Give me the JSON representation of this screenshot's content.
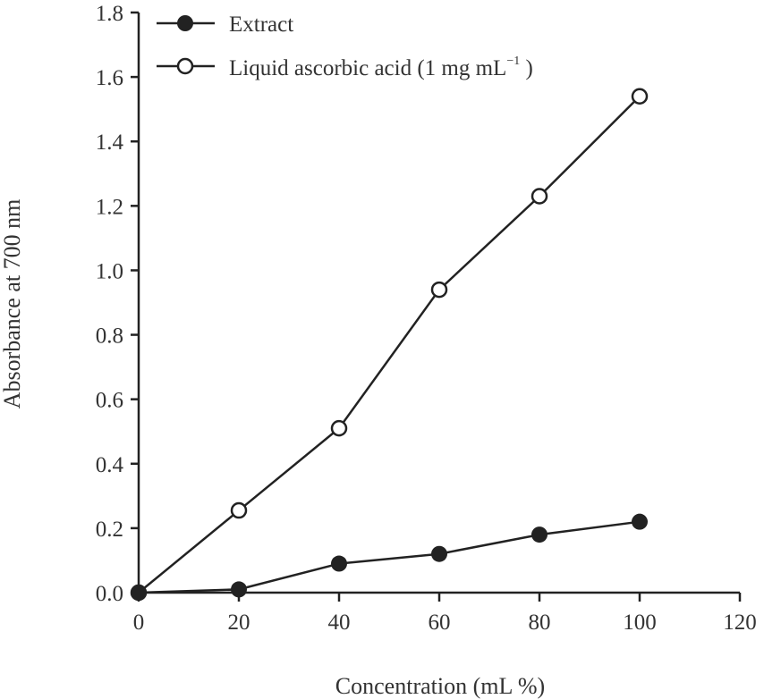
{
  "chart_data": {
    "type": "line",
    "title": "",
    "xlabel": "Concentration (mL %)",
    "ylabel": "Absorbance at 700 nm",
    "xlim": [
      0,
      120
    ],
    "ylim": [
      0,
      1.8
    ],
    "x_ticks": [
      "0",
      "20",
      "40",
      "60",
      "80",
      "100",
      "120"
    ],
    "y_ticks": [
      "0.0",
      "0.2",
      "0.4",
      "0.6",
      "0.8",
      "1.0",
      "1.2",
      "1.4",
      "1.6",
      "1.8"
    ],
    "grid": false,
    "legend_position": "top-left",
    "x": [
      0,
      20,
      40,
      60,
      80,
      100
    ],
    "series": [
      {
        "name": "Extract",
        "marker": "filled-circle",
        "values": [
          0.0,
          0.01,
          0.09,
          0.12,
          0.18,
          0.22
        ]
      },
      {
        "name": "Liquid ascorbic acid (1 mg mL⁻¹ )",
        "marker": "open-circle",
        "values": [
          0.0,
          0.255,
          0.51,
          0.94,
          1.23,
          1.54
        ]
      }
    ]
  },
  "legend": {
    "extract_label": "Extract",
    "ascorbic_label_main": "Liquid ascorbic acid (1 mg mL",
    "ascorbic_label_sup": "−1",
    "ascorbic_label_end": " )"
  },
  "axes": {
    "xlabel": "Concentration (mL %)",
    "ylabel": "Absorbance at 700 nm"
  }
}
